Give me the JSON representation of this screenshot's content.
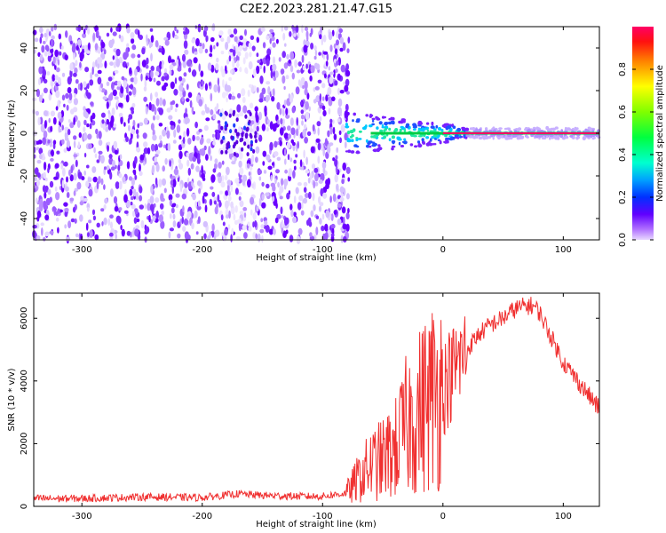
{
  "title": "C2E2.2023.281.21.47.G15",
  "colors": {
    "snr_line": "#f03030",
    "spectrum_low": "#8a2be2",
    "spectrum_high": "#ff0066"
  },
  "chart_data": [
    {
      "type": "heatmap",
      "xlabel": "Height of straight line (km)",
      "ylabel": "Frequency (Hz)",
      "xlim": [
        -340,
        130
      ],
      "ylim": [
        -50,
        50
      ],
      "x_ticks": [
        -300,
        -200,
        -100,
        0,
        100
      ],
      "y_ticks": [
        -40,
        -20,
        0,
        20,
        40
      ],
      "noise_region_x": [
        -340,
        -78
      ],
      "signal_region_x": [
        -80,
        130
      ],
      "signal_frequency_hz": 0,
      "colorbar": {
        "label": "Normalized spectral amplitude",
        "range": [
          0.0,
          1.0
        ],
        "ticks": [
          0.0,
          0.2,
          0.4,
          0.6,
          0.8
        ]
      }
    },
    {
      "type": "line",
      "xlabel": "Height of straight line (km)",
      "ylabel": "SNR (10 * v/v)",
      "xlim": [
        -340,
        130
      ],
      "ylim": [
        0,
        6800
      ],
      "x_ticks": [
        -300,
        -200,
        -100,
        0,
        100
      ],
      "y_ticks": [
        0,
        2000,
        4000,
        6000
      ],
      "series": [
        {
          "x": [
            -340,
            -300,
            -250,
            -200,
            -170,
            -150,
            -120,
            -100,
            -80,
            -70,
            -60,
            -50,
            -40,
            -30,
            -20,
            -10,
            0,
            10,
            20,
            30,
            40,
            50,
            60,
            70,
            75,
            80,
            90,
            100,
            110,
            120,
            130
          ],
          "y": [
            250,
            250,
            300,
            280,
            400,
            350,
            320,
            320,
            420,
            900,
            1300,
            1500,
            1800,
            2600,
            3000,
            3500,
            3800,
            4400,
            5000,
            5500,
            5800,
            6000,
            6300,
            6400,
            6400,
            6200,
            5400,
            4600,
            4100,
            3600,
            3100
          ]
        }
      ]
    }
  ]
}
